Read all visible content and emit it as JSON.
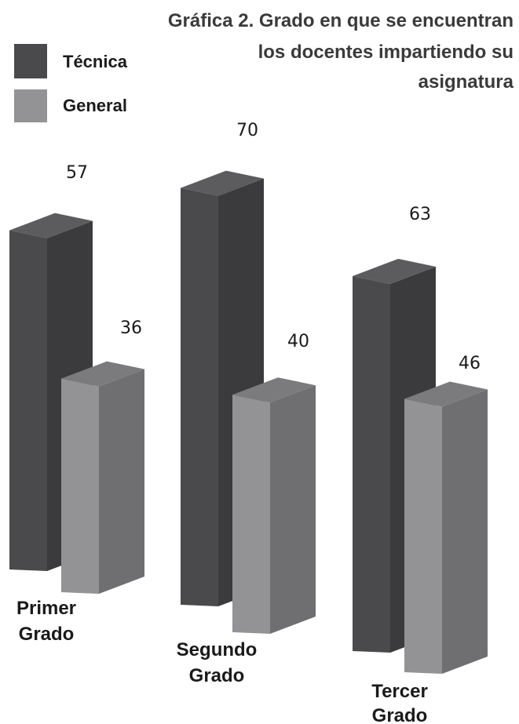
{
  "chart_data": {
    "type": "bar",
    "title": "Gráfica 2. Grado en que se encuentran los docentes impartiendo su asignatura",
    "title_lines": [
      "Gráfica 2. Grado en que se encuentran",
      "los docentes impartiendo su",
      "asignatura"
    ],
    "categories": [
      "Primer Grado",
      "Segundo Grado",
      "Tercer Grado"
    ],
    "category_lines": [
      [
        "Primer",
        "Grado"
      ],
      [
        "Segundo",
        "Grado"
      ],
      [
        "Tercer",
        "Grado"
      ]
    ],
    "series": [
      {
        "name": "Técnica",
        "values": [
          57,
          70,
          63
        ],
        "color": "#4a4a4c",
        "side_color": "#3b3b3d",
        "top_color": "#5c5c5e"
      },
      {
        "name": "General",
        "values": [
          36,
          40,
          46
        ],
        "color": "#939396",
        "side_color": "#6f6f72",
        "top_color": "#7b7b7e"
      }
    ],
    "value_labels": [
      "57",
      "36",
      "70",
      "40",
      "63",
      "46"
    ],
    "legend": {
      "position": "top-left"
    },
    "grid": false,
    "style": "3d-columns"
  }
}
